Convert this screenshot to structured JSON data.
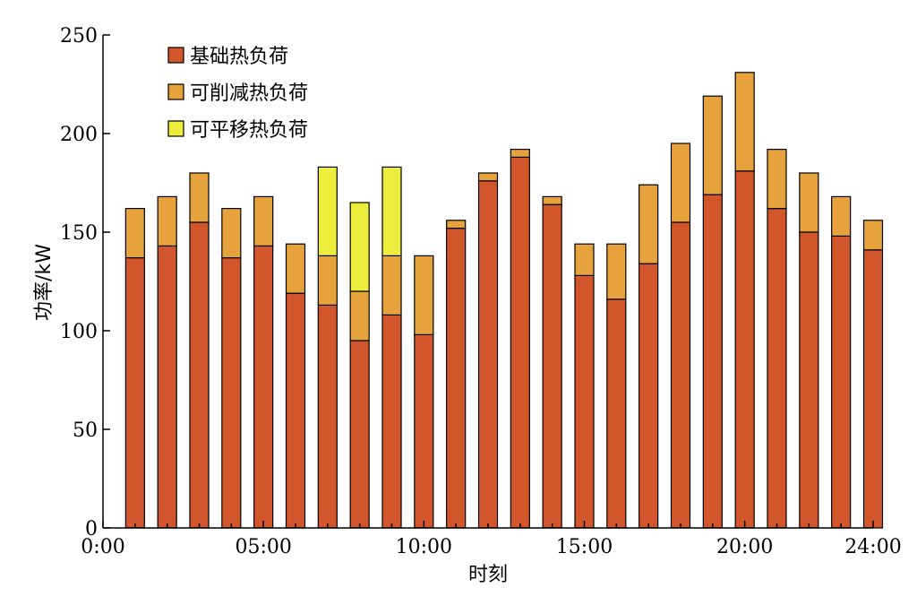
{
  "chart_data": {
    "type": "bar",
    "stacked": true,
    "title": "",
    "xlabel": "时刻",
    "ylabel": "功率/kW",
    "ylim": [
      0,
      250
    ],
    "yticks": [
      "0",
      "50",
      "100",
      "150",
      "200",
      "250"
    ],
    "xticks": [
      "0:00",
      "05:00",
      "10:00",
      "15:00",
      "20:00",
      "24:00"
    ],
    "x": [
      1,
      2,
      3,
      4,
      5,
      6,
      7,
      8,
      9,
      10,
      11,
      12,
      13,
      14,
      15,
      16,
      17,
      18,
      19,
      20,
      21,
      22,
      23,
      24
    ],
    "legend_position": "top-left",
    "grid": false,
    "series": [
      {
        "name": "基础热负荷",
        "color": "#d2562c",
        "values": [
          137,
          143,
          155,
          137,
          143,
          119,
          113,
          95,
          108,
          98,
          152,
          176,
          188,
          164,
          128,
          116,
          134,
          155,
          169,
          181,
          162,
          150,
          148,
          141
        ]
      },
      {
        "name": "可削减热负荷",
        "color": "#e6a23c",
        "values": [
          25,
          25,
          25,
          25,
          25,
          25,
          25,
          25,
          30,
          40,
          4,
          4,
          4,
          4,
          16,
          28,
          40,
          40,
          50,
          50,
          30,
          30,
          20,
          15
        ]
      },
      {
        "name": "可平移热负荷",
        "color": "#eded3e",
        "values": [
          0,
          0,
          0,
          0,
          0,
          0,
          45,
          45,
          45,
          0,
          0,
          0,
          0,
          0,
          0,
          0,
          0,
          0,
          0,
          0,
          0,
          0,
          0,
          0
        ]
      }
    ]
  }
}
